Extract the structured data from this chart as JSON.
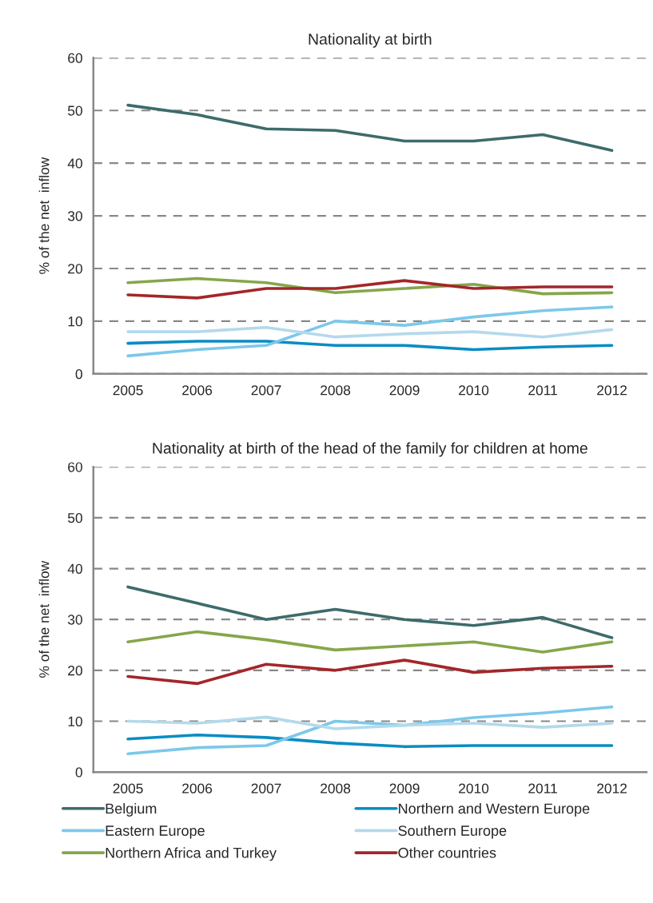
{
  "chart_data": [
    {
      "type": "line",
      "title": "Nationality at birth",
      "ylabel": "% of the net  inflow",
      "categories": [
        "2005",
        "2006",
        "2007",
        "2008",
        "2009",
        "2010",
        "2011",
        "2012"
      ],
      "ylim": [
        0,
        60
      ],
      "yticks": [
        0,
        10,
        20,
        30,
        40,
        50,
        60
      ],
      "grid": "y",
      "line_style": "solid",
      "legend": "bottom",
      "series": [
        {
          "name": "Belgium",
          "color": "#3d6b6b",
          "values": [
            51,
            49.2,
            46.5,
            46.2,
            44.2,
            44.2,
            45.4,
            42.4
          ]
        },
        {
          "name": "Northern and Western Europe",
          "color": "#0a8cc4",
          "values": [
            5.8,
            6.2,
            6.2,
            5.4,
            5.4,
            4.6,
            5.1,
            5.4
          ]
        },
        {
          "name": "Eastern Europe",
          "color": "#7cc8ea",
          "values": [
            3.4,
            4.6,
            5.4,
            10,
            9.2,
            10.8,
            12,
            12.7
          ]
        },
        {
          "name": "Southern Europe",
          "color": "#b4d9ec",
          "values": [
            8,
            8,
            8.8,
            7,
            7.6,
            8,
            7,
            8.4
          ]
        },
        {
          "name": "Northern Africa and Turkey",
          "color": "#86a64a",
          "values": [
            17.3,
            18.1,
            17.3,
            15.4,
            16.2,
            17,
            15.2,
            15.4
          ]
        },
        {
          "name": "Other countries",
          "color": "#a3262a",
          "values": [
            15,
            14.4,
            16.2,
            16.2,
            17.7,
            16.2,
            16.5,
            16.5
          ]
        }
      ]
    },
    {
      "type": "line",
      "title": "Nationality at birth of the head of the family for children at home",
      "ylabel": "% of the net  inflow",
      "categories": [
        "2005",
        "2006",
        "2007",
        "2008",
        "2009",
        "2010",
        "2011",
        "2012"
      ],
      "ylim": [
        0,
        60
      ],
      "yticks": [
        0,
        10,
        20,
        30,
        40,
        50,
        60
      ],
      "grid": "y",
      "line_style": "solid",
      "series": [
        {
          "color": "#3d6b6b",
          "values": [
            36.4,
            33.2,
            30,
            32,
            30,
            28.8,
            30.4,
            26.4
          ]
        },
        {
          "color": "#0a8cc4",
          "values": [
            6.5,
            7.3,
            6.8,
            5.7,
            5,
            5.2,
            5.2,
            5.2
          ]
        },
        {
          "color": "#7cc8ea",
          "values": [
            3.6,
            4.8,
            5.2,
            10,
            9.2,
            10.7,
            11.6,
            12.8
          ]
        },
        {
          "color": "#b4d9ec",
          "values": [
            10,
            9.6,
            10.8,
            8.5,
            9.2,
            9.6,
            8.8,
            9.6
          ]
        },
        {
          "color": "#86a64a",
          "values": [
            25.6,
            27.6,
            26,
            24,
            24.8,
            25.6,
            23.6,
            25.6
          ]
        },
        {
          "color": "#a3262a",
          "values": [
            18.8,
            17.4,
            21.2,
            20,
            22,
            19.6,
            20.4,
            20.8
          ]
        }
      ]
    }
  ]
}
